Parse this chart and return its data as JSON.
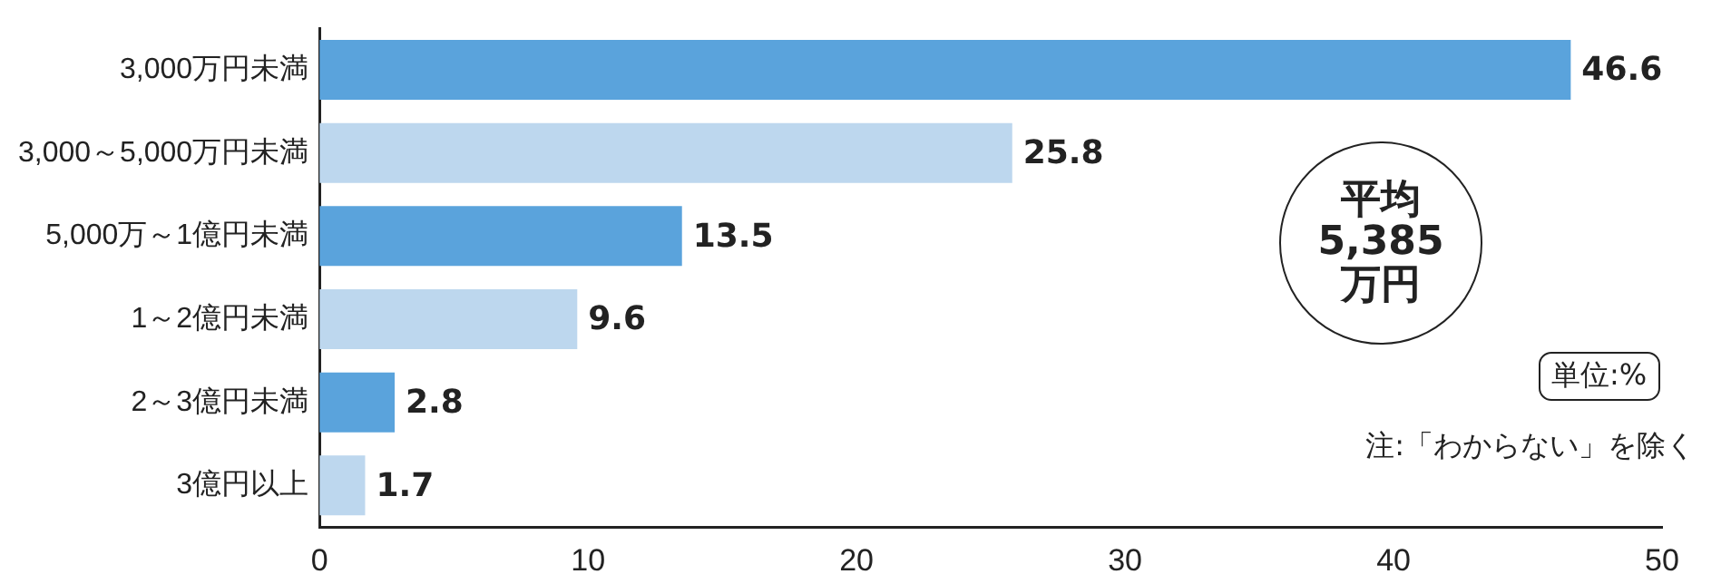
{
  "chart_data": {
    "type": "bar",
    "orientation": "horizontal",
    "categories": [
      "3,000万円未満",
      "3,000～5,000万円未満",
      "5,000万～1億円未満",
      "1～2億円未満",
      "2～3億円未満",
      "3億円以上"
    ],
    "values": [
      46.6,
      25.8,
      13.5,
      9.6,
      2.8,
      1.7
    ],
    "colors": [
      "#5aa3dc",
      "#bdd7ee",
      "#5aa3dc",
      "#bdd7ee",
      "#5aa3dc",
      "#bdd7ee"
    ],
    "xlim": [
      0,
      50
    ],
    "xticks": [
      0,
      10,
      20,
      30,
      40,
      50
    ],
    "data_labels": true,
    "grid": false,
    "legend": false,
    "annotations": [
      "平均\n5,385\n万円",
      "単位:%",
      "注:「わからない」を除く"
    ]
  }
}
